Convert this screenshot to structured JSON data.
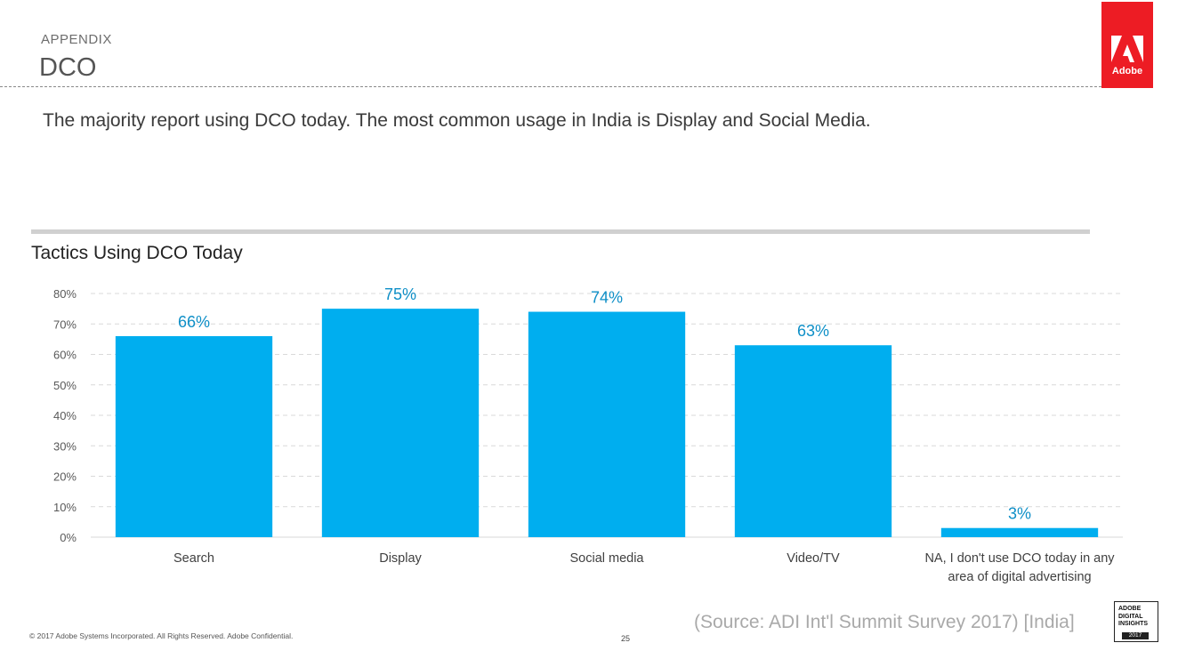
{
  "header": {
    "appendix": "APPENDIX",
    "section_title": "DCO",
    "logo_text": "Adobe"
  },
  "headline": "The majority report using DCO today. The most common usage in India is Display and Social Media.",
  "footer": {
    "copyright": "© 2017 Adobe Systems Incorporated.  All Rights Reserved.  Adobe Confidential.",
    "page_number": "25",
    "source": "(Source: ADI Int'l Summit Survey 2017) [India]",
    "badge_line1": "ADOBE",
    "badge_line2": "DIGITAL",
    "badge_line3": "INSIGHTS",
    "badge_year": "2017"
  },
  "colors": {
    "bar": "#00aeef",
    "data_label": "#0e8fc7",
    "brand": "#ed1c24"
  },
  "chart_data": {
    "type": "bar",
    "title": "Tactics Using DCO Today",
    "categories": [
      "Search",
      "Display",
      "Social media",
      "Video/TV",
      "NA, I don't use DCO today in any area of digital advertising"
    ],
    "category_lines": [
      [
        "Search"
      ],
      [
        "Display"
      ],
      [
        "Social media"
      ],
      [
        "Video/TV"
      ],
      [
        "NA, I don't use DCO today in any",
        "area of digital advertising"
      ]
    ],
    "values": [
      66,
      75,
      74,
      63,
      3
    ],
    "data_labels": [
      "66%",
      "75%",
      "74%",
      "63%",
      "3%"
    ],
    "y_ticks": [
      0,
      10,
      20,
      30,
      40,
      50,
      60,
      70,
      80
    ],
    "y_tick_labels": [
      "0%",
      "10%",
      "20%",
      "30%",
      "40%",
      "50%",
      "60%",
      "70%",
      "80%"
    ],
    "ylim": [
      0,
      80
    ],
    "grid": true,
    "xlabel": "",
    "ylabel": ""
  }
}
